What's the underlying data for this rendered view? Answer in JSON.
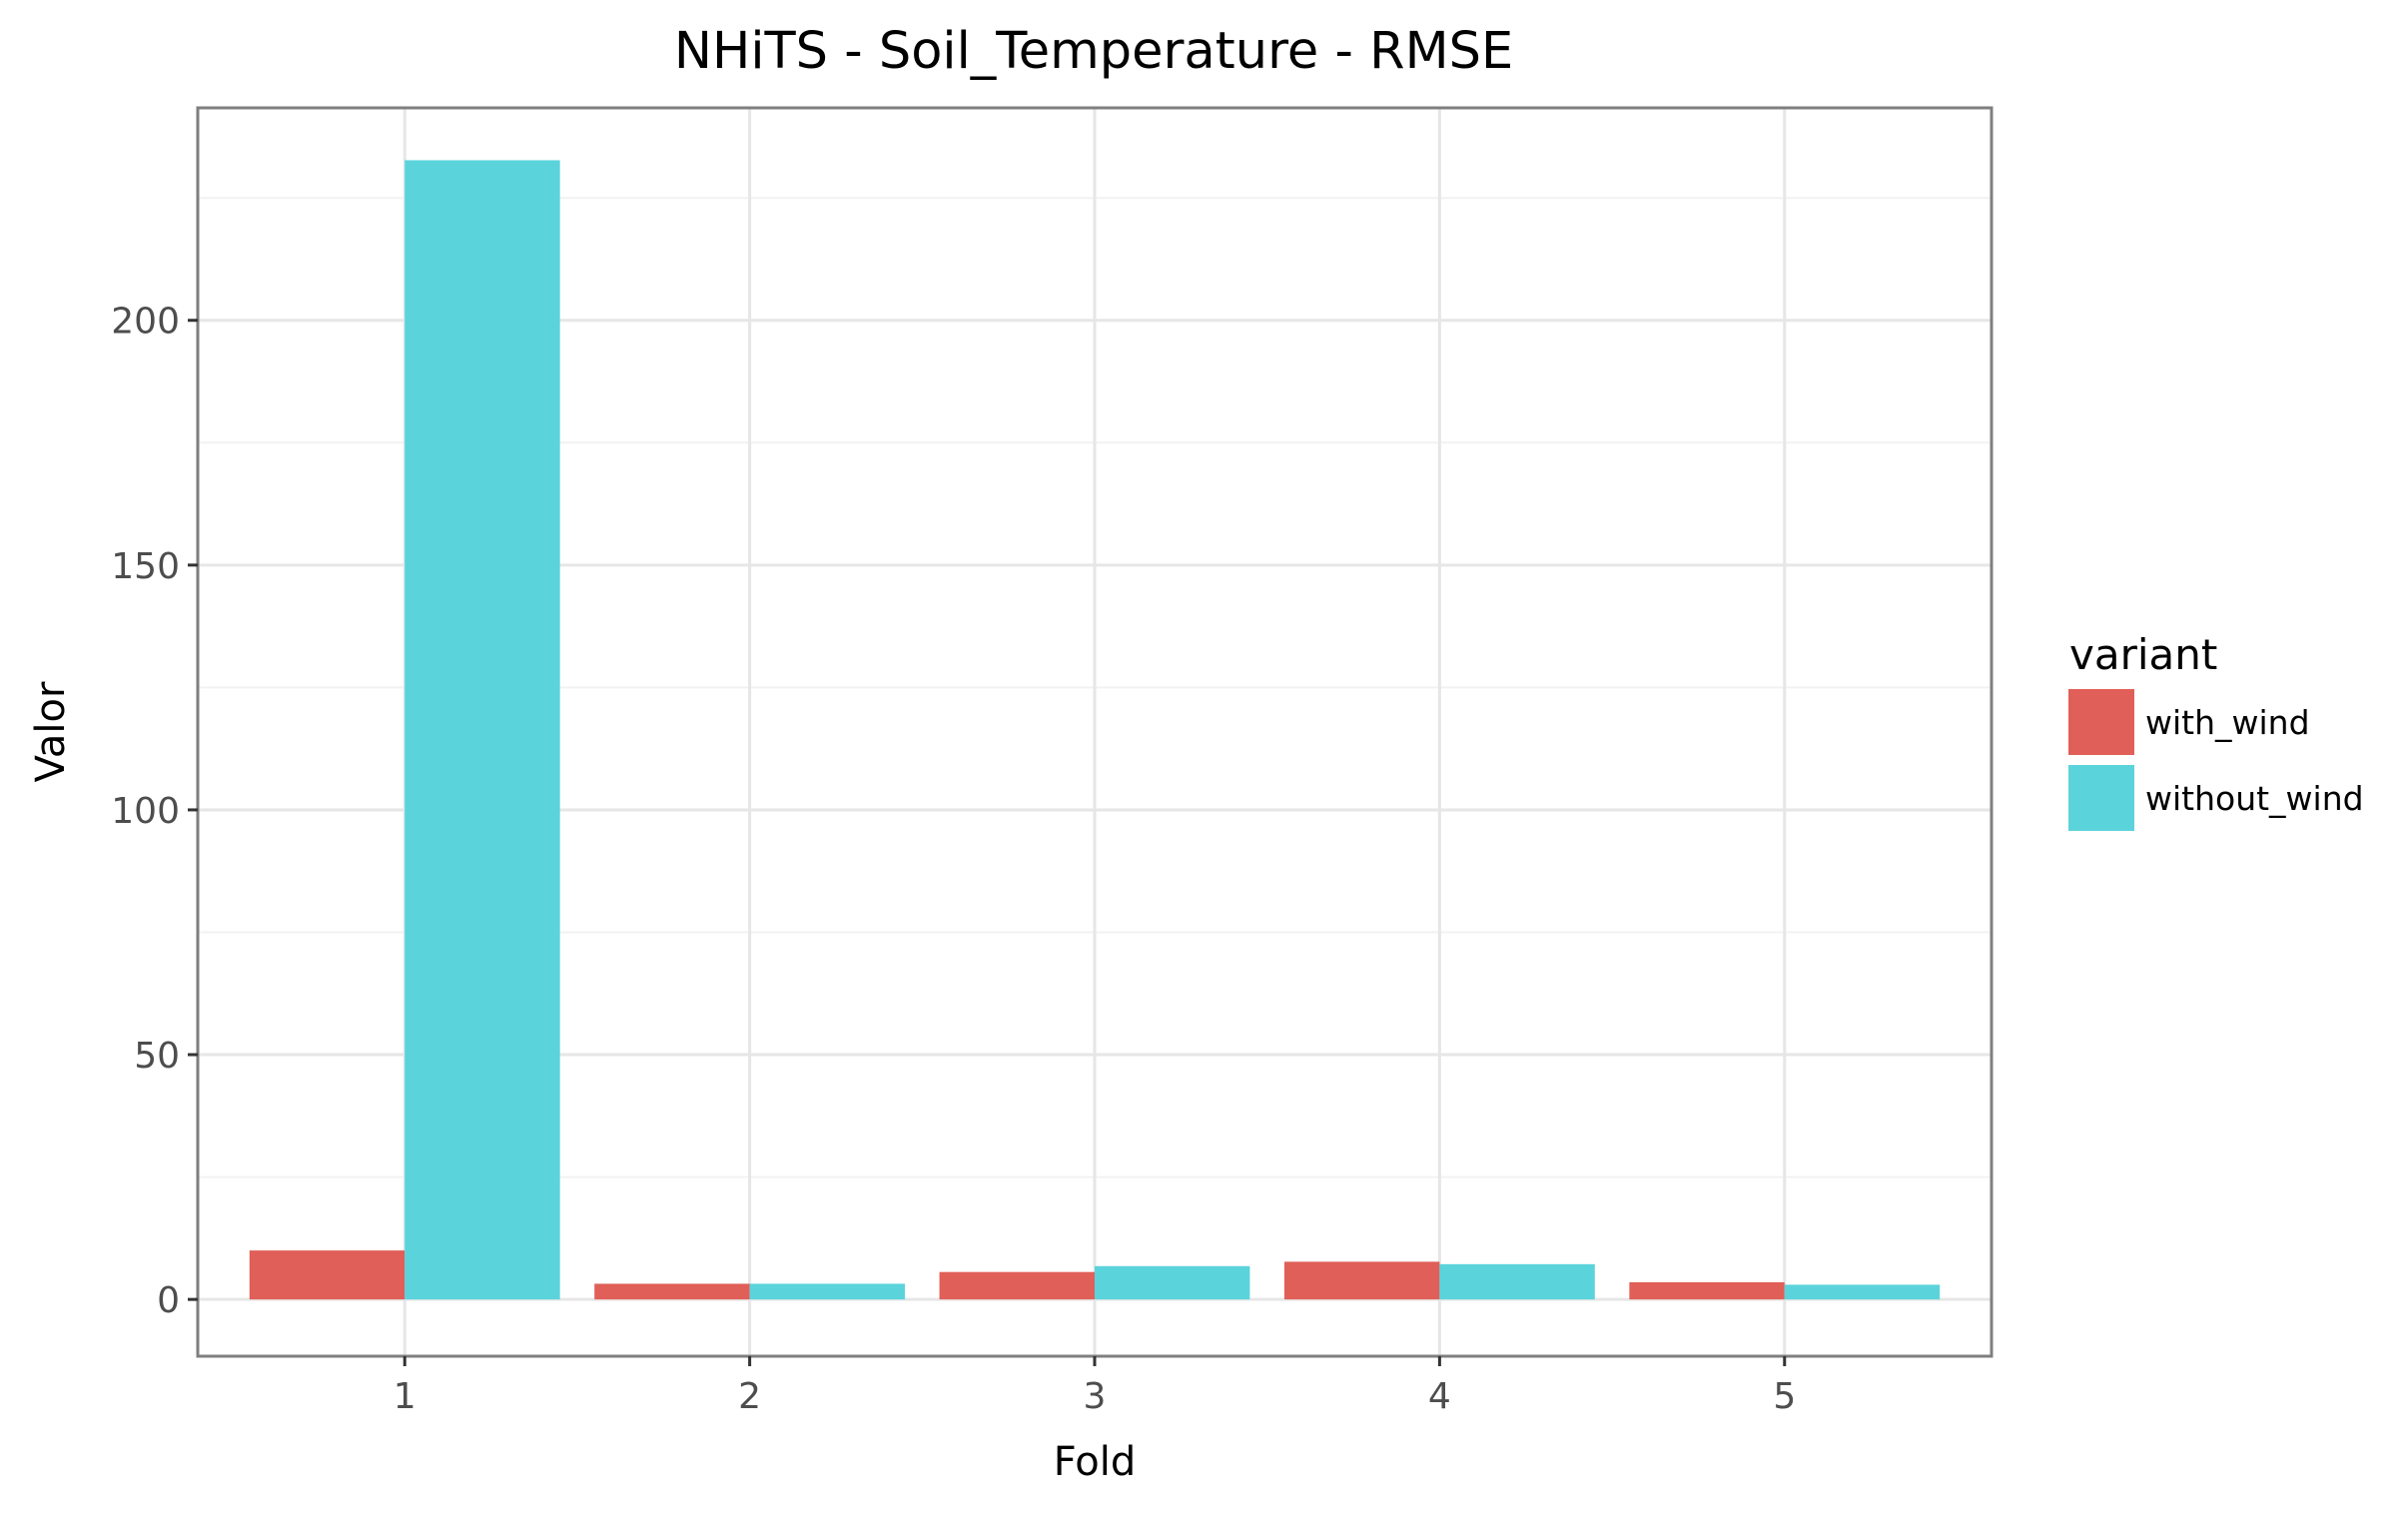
{
  "chart_data": {
    "type": "bar",
    "title": "NHiTS - Soil_Temperature - RMSE",
    "xlabel": "Fold",
    "ylabel": "Valor",
    "categories": [
      "1",
      "2",
      "3",
      "4",
      "5"
    ],
    "yticks": [
      0,
      50,
      100,
      150,
      200
    ],
    "ylim": [
      -11.6,
      243.4
    ],
    "grid": true,
    "legend": {
      "title": "variant",
      "position": "right"
    },
    "series": [
      {
        "name": "with_wind",
        "color": "#e05f58",
        "values": [
          10.0,
          3.2,
          5.6,
          7.7,
          3.5
        ]
      },
      {
        "name": "without_wind",
        "color": "#5bd3db",
        "values": [
          232.7,
          3.2,
          6.8,
          7.2,
          3.0
        ]
      }
    ]
  }
}
